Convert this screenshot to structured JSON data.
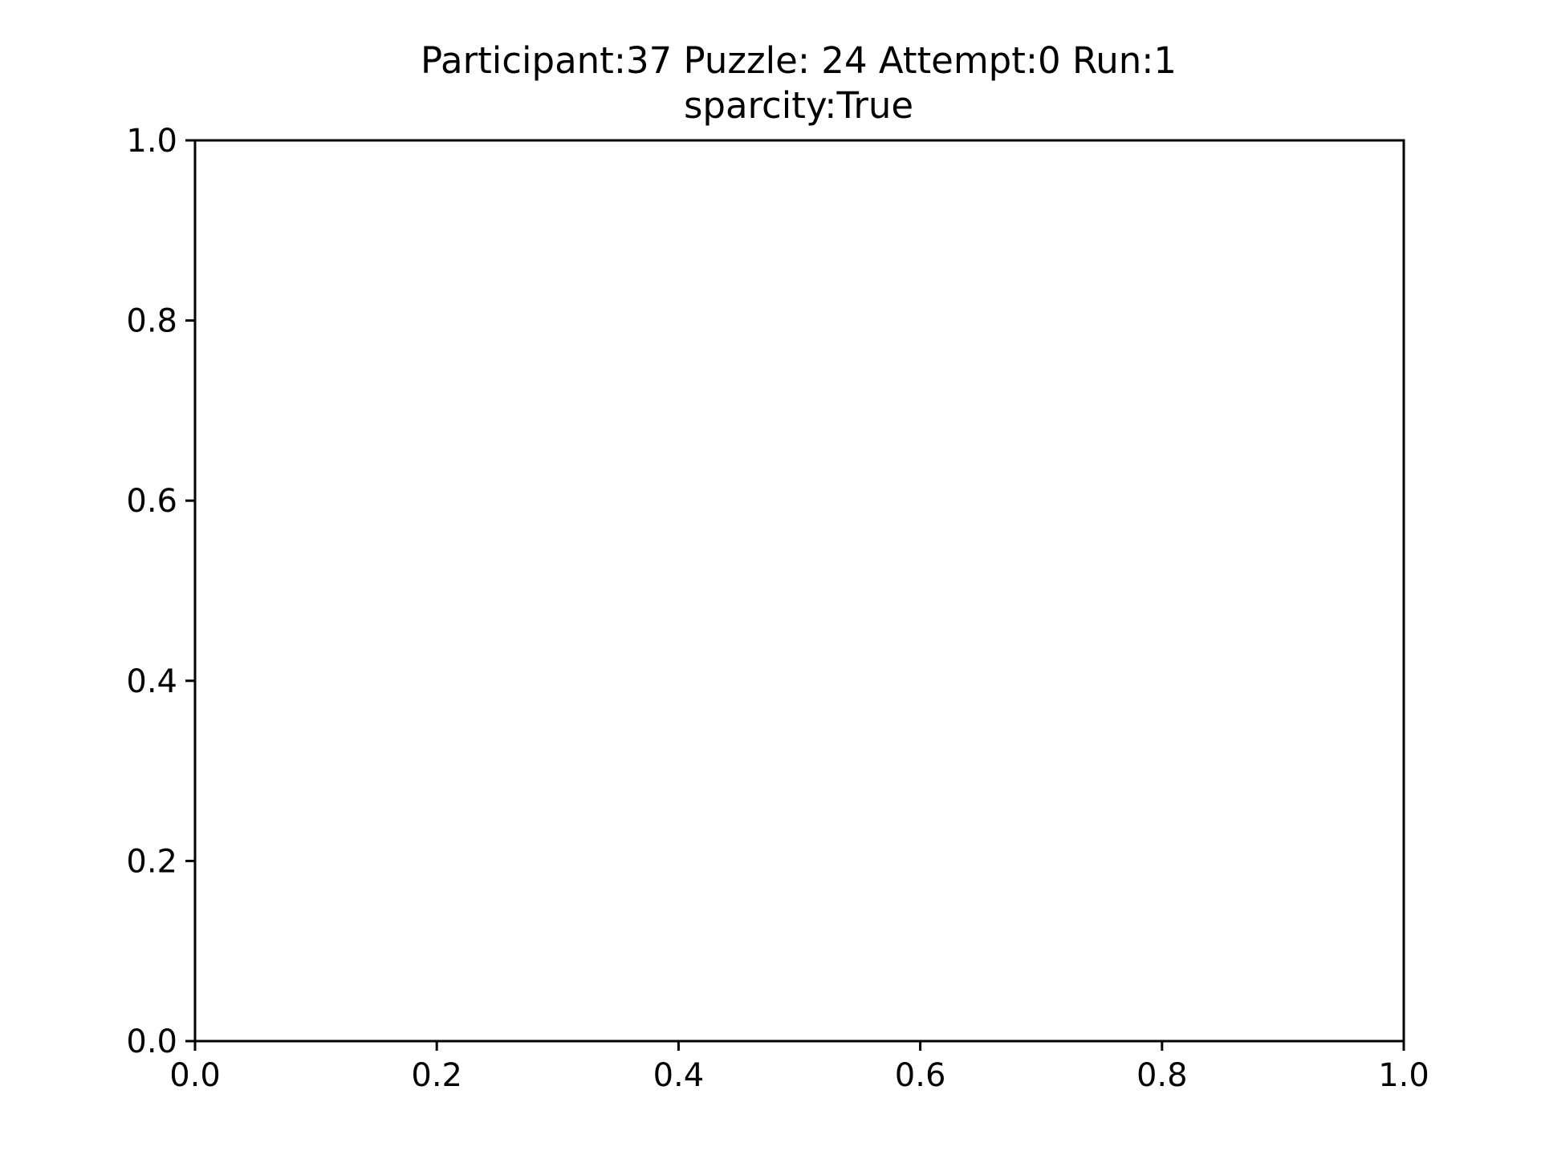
{
  "chart_data": {
    "type": "line",
    "title": "Participant:37 Puzzle: 24 Attempt:0 Run:1",
    "subtitle": "sparcity:True",
    "xlabel": "",
    "ylabel": "",
    "xlim": [
      0.0,
      1.0
    ],
    "ylim": [
      0.0,
      1.0
    ],
    "x_ticks": [
      0.0,
      0.2,
      0.4,
      0.6,
      0.8,
      1.0
    ],
    "x_tick_labels": [
      "0.0",
      "0.2",
      "0.4",
      "0.6",
      "0.8",
      "1.0"
    ],
    "y_ticks": [
      0.0,
      0.2,
      0.4,
      0.6,
      0.8,
      1.0
    ],
    "y_tick_labels": [
      "0.0",
      "0.2",
      "0.4",
      "0.6",
      "0.8",
      "1.0"
    ],
    "grid": false,
    "series": []
  }
}
